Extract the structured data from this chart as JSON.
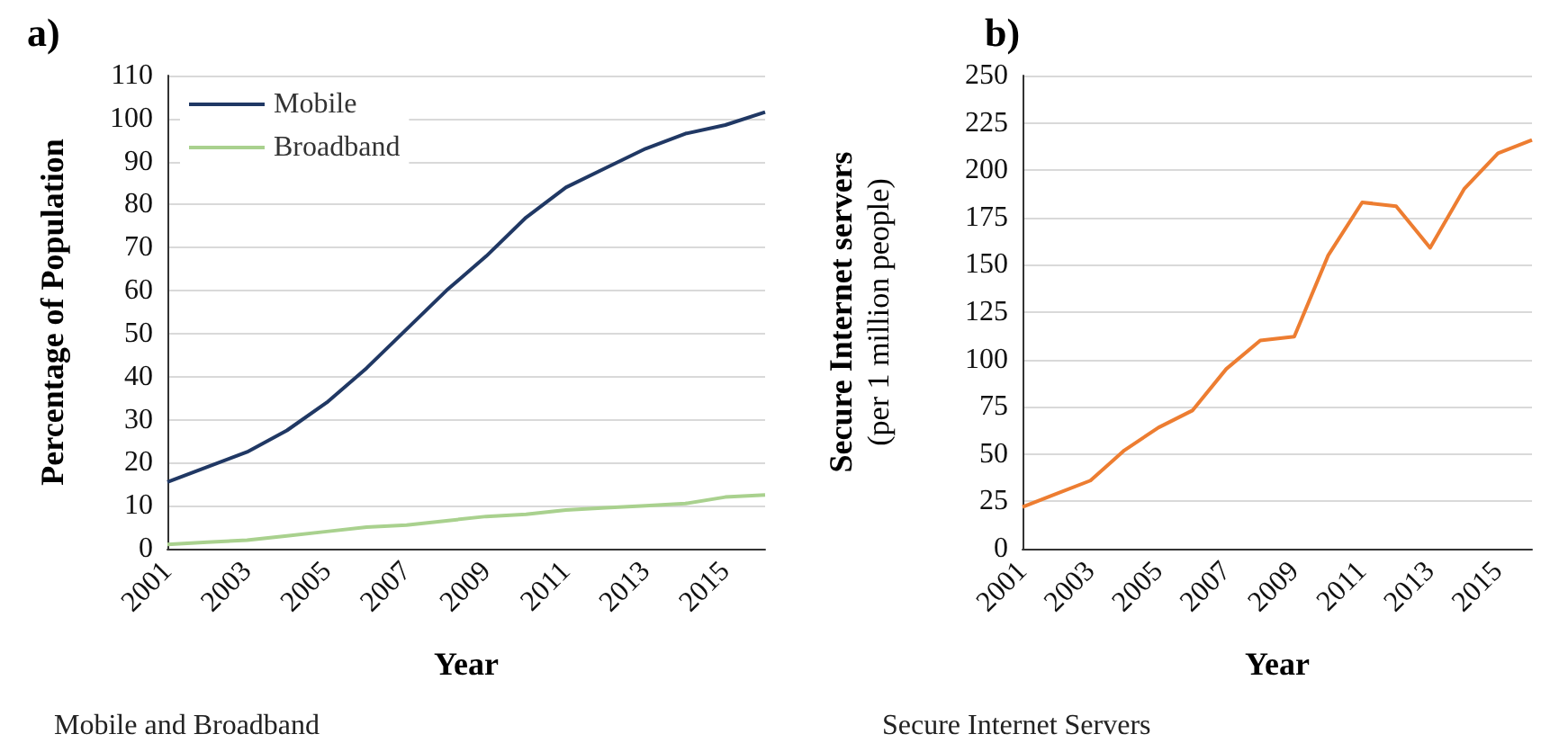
{
  "chart_data": [
    {
      "type": "line",
      "title": "a)",
      "xlabel": "Year",
      "ylabel": "Percentage of Population",
      "annotations": [
        "Mobile and Broadband"
      ],
      "categories": [
        "2001",
        null,
        "2003",
        null,
        "2005",
        null,
        "2007",
        null,
        "2009",
        null,
        "2011",
        null,
        "2013",
        null,
        "2015",
        null
      ],
      "series": [
        {
          "name": "Mobile",
          "color": "#203864",
          "values": [
            15.5,
            19,
            22.5,
            27.5,
            34,
            42,
            51,
            60,
            68,
            77,
            84,
            88.5,
            93,
            96.5,
            98.5,
            101.5
          ]
        },
        {
          "name": "Broadband",
          "color": "#a9d18e",
          "values": [
            1,
            1.5,
            2,
            3,
            4,
            5,
            5.5,
            6.5,
            7.5,
            8,
            9,
            9.5,
            10,
            10.5,
            12,
            12.5
          ]
        }
      ],
      "ylim": [
        0,
        110
      ],
      "yticks": [
        0,
        10,
        20,
        30,
        40,
        50,
        60,
        70,
        80,
        90,
        100,
        110
      ],
      "grid": "y",
      "legend": "top left",
      "marker": "none"
    },
    {
      "type": "line",
      "title": "b)",
      "xlabel": "Year",
      "ylabel": "Secure Internet servers",
      "subtitle": "(per 1 million people)",
      "annotations": [
        "Secure Internet Servers"
      ],
      "categories": [
        "2001",
        null,
        "2003",
        null,
        "2005",
        null,
        "2007",
        null,
        "2009",
        null,
        "2011",
        null,
        "2013",
        null,
        "2015",
        null
      ],
      "series": [
        {
          "color": "#ed7d31",
          "values": [
            22,
            29,
            36,
            52,
            64,
            73,
            95,
            110,
            112,
            155,
            183,
            181,
            159,
            190,
            209,
            216
          ]
        }
      ],
      "ylim": [
        0,
        250
      ],
      "yticks": [
        0,
        25,
        50,
        75,
        100,
        125,
        150,
        175,
        200,
        225,
        250
      ],
      "grid": "y",
      "legend": false,
      "marker": "none"
    }
  ]
}
